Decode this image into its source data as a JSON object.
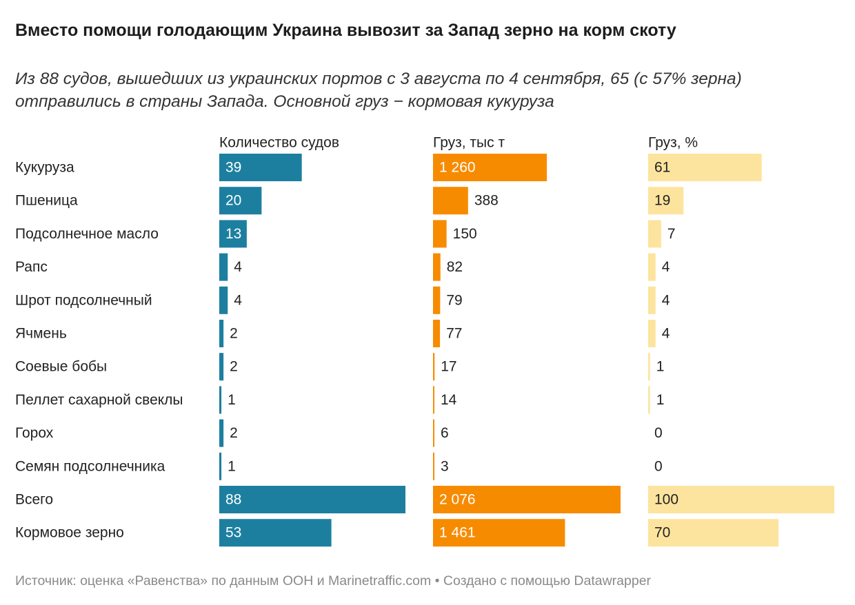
{
  "title": "Вместо помощи голодающим Украина вывозит за Запад зерно на корм скоту",
  "subtitle": "Из 88 судов, вышедших из украинских портов с 3 августа по 4 сентября, 65 (с 57% зерна) отправились в страны Запада. Основной груз − кормовая кукуруза",
  "notes": "Источник: оценка «Равенства» по данным ООН и Marinetraffic.com • Создано с помощью Datawrapper",
  "chart_data": {
    "type": "bar",
    "orientation": "horizontal",
    "categories": [
      "Кукуруза",
      "Пшеница",
      "Подсолнечное масло",
      "Рапс",
      "Шрот подсолнечный",
      "Ячмень",
      "Соевые бобы",
      "Пеллет сахарной свеклы",
      "Горох",
      "Семян подсолнечника",
      "Всего",
      "Кормовое зерно"
    ],
    "series": [
      {
        "name": "Количество судов",
        "color": "#1d7fa0",
        "max": 88,
        "values": [
          39,
          20,
          13,
          4,
          4,
          2,
          2,
          1,
          2,
          1,
          88,
          53
        ],
        "labels": [
          "39",
          "20",
          "13",
          "4",
          "4",
          "2",
          "2",
          "1",
          "2",
          "1",
          "88",
          "53"
        ]
      },
      {
        "name": "Груз, тыс т",
        "color": "#f78b00",
        "max": 2076,
        "values": [
          1260,
          388,
          150,
          82,
          79,
          77,
          17,
          14,
          6,
          3,
          2076,
          1461
        ],
        "labels": [
          "1 260",
          "388",
          "150",
          "82",
          "79",
          "77",
          "17",
          "14",
          "6",
          "3",
          "2 076",
          "1 461"
        ]
      },
      {
        "name": "Груз, %",
        "color": "#fde49e",
        "max": 100,
        "values": [
          61,
          19,
          7,
          4,
          4,
          4,
          1,
          1,
          0,
          0,
          100,
          70
        ],
        "labels": [
          "61",
          "19",
          "7",
          "4",
          "4",
          "4",
          "1",
          "1",
          "0",
          "0",
          "100",
          "70"
        ]
      }
    ]
  }
}
